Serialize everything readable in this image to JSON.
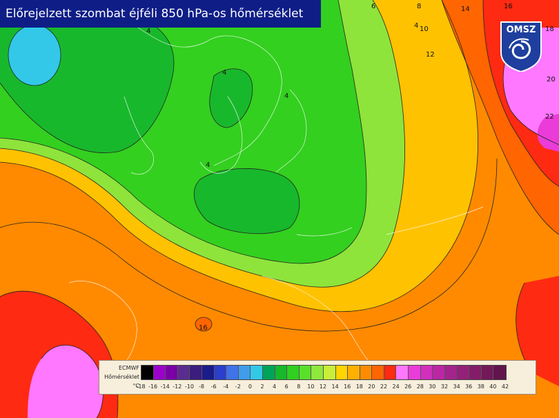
{
  "title": "Előrejelzett szombat éjféli 850 hPa-os hőmérséklet",
  "logo": {
    "text": "OMSZ",
    "icon": "cyclone-icon",
    "color": "#1f3f9e"
  },
  "legend": {
    "source": "ECMWF",
    "variable": "Hőmérséklet",
    "unit": "°C",
    "ticks": [
      "-18",
      "-16",
      "-14",
      "-12",
      "-10",
      "-8",
      "-6",
      "-4",
      "-2",
      "0",
      "2",
      "4",
      "6",
      "8",
      "10",
      "12",
      "14",
      "16",
      "18",
      "20",
      "22",
      "24",
      "26",
      "28",
      "30",
      "32",
      "34",
      "36",
      "38",
      "40",
      "42"
    ],
    "colors": [
      "#000000",
      "#9b00cc",
      "#7a00a6",
      "#5a2c8f",
      "#3a1d7e",
      "#1b1b8c",
      "#2b3fcc",
      "#4173e8",
      "#3f9de9",
      "#33c8e8",
      "#00a35a",
      "#18b82c",
      "#2fd01f",
      "#5ae02b",
      "#8fe83c",
      "#c8ee3a",
      "#ffd400",
      "#ffb000",
      "#ff8c00",
      "#ff6500",
      "#ff2a12",
      "#ff78ff",
      "#ea3cd8",
      "#d42ebd",
      "#bb26a4",
      "#a5238d",
      "#942079",
      "#841c69",
      "#73185a",
      "#62144d"
    ]
  },
  "contour_labels": [
    "4",
    "4",
    "4",
    "4",
    "4",
    "6",
    "8",
    "10",
    "12",
    "14",
    "16",
    "16",
    "18",
    "20",
    "22"
  ]
}
